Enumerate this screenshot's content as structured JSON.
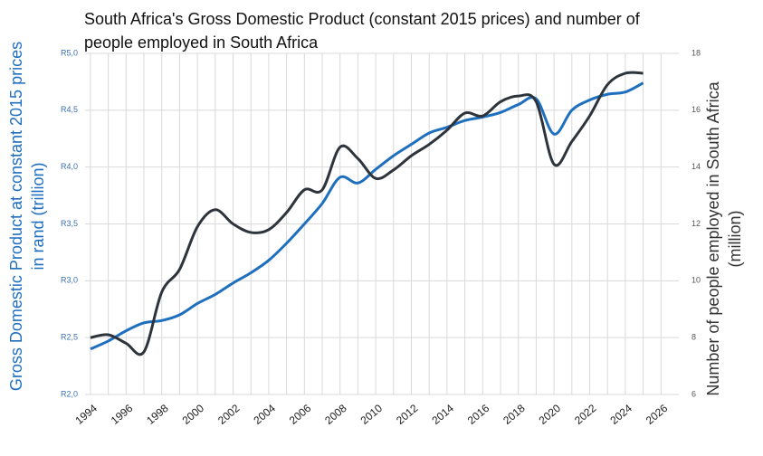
{
  "chart_data": {
    "type": "line",
    "title": "South Africa's Gross Domestic Product (constant 2015 prices) and number of people employed in South Africa",
    "y_label": "Gross Domestic Product at constant 2015 prices in rand (trillion)",
    "y2_label": "Number of people employed in South Africa (million)",
    "x": [
      1994,
      1995,
      1996,
      1997,
      1998,
      1999,
      2000,
      2001,
      2002,
      2003,
      2004,
      2005,
      2006,
      2007,
      2008,
      2009,
      2010,
      2011,
      2012,
      2013,
      2014,
      2015,
      2016,
      2017,
      2018,
      2019,
      2020,
      2021,
      2022,
      2023,
      2024,
      2025
    ],
    "series": [
      {
        "name": "Gross Domestic Product",
        "color": "#1f6fbf",
        "values": [
          2.4,
          2.47,
          2.56,
          2.63,
          2.65,
          2.7,
          2.8,
          2.88,
          2.98,
          3.07,
          3.18,
          3.33,
          3.5,
          3.68,
          3.91,
          3.86,
          3.98,
          4.1,
          4.2,
          4.3,
          4.35,
          4.41,
          4.44,
          4.48,
          4.55,
          4.6,
          4.29,
          4.5,
          4.59,
          4.64,
          4.66,
          4.74
        ]
      },
      {
        "name": "Number of people employed",
        "color": "#2e343c",
        "axis": "y2",
        "values": [
          8.0,
          8.1,
          7.8,
          7.5,
          9.6,
          10.4,
          11.9,
          12.5,
          12.0,
          11.7,
          11.8,
          12.4,
          13.2,
          13.2,
          14.7,
          14.3,
          13.6,
          13.9,
          14.4,
          14.8,
          15.3,
          15.9,
          15.8,
          16.3,
          16.5,
          16.3,
          14.1,
          14.9,
          15.8,
          16.9,
          17.3,
          17.3
        ]
      }
    ],
    "xlim": [
      1993.7,
      2027
    ],
    "xticks": [
      1994,
      1996,
      1998,
      2000,
      2002,
      2004,
      2006,
      2008,
      2010,
      2012,
      2014,
      2016,
      2018,
      2020,
      2022,
      2024,
      2026
    ],
    "ylim": [
      2.0,
      5.0
    ],
    "yticks": [
      {
        "value": 2.0,
        "label": "R2,0"
      },
      {
        "value": 2.5,
        "label": "R2,5"
      },
      {
        "value": 3.0,
        "label": "R3,0"
      },
      {
        "value": 3.5,
        "label": "R3,5"
      },
      {
        "value": 4.0,
        "label": "R4,0"
      },
      {
        "value": 4.5,
        "label": "R4,5"
      },
      {
        "value": 5.0,
        "label": "R5,0"
      }
    ],
    "y2lim": [
      6,
      18
    ],
    "y2ticks": [
      6,
      8,
      10,
      12,
      14,
      16,
      18
    ],
    "grid": true
  }
}
